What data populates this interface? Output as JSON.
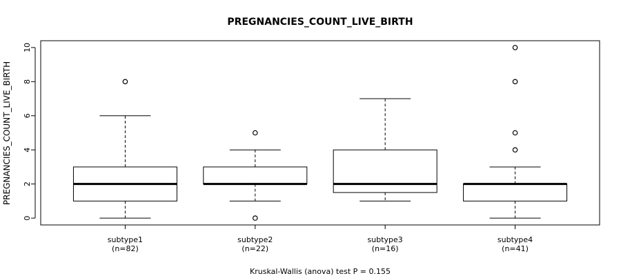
{
  "chart_data": {
    "type": "box",
    "title": "PREGNANCIES_COUNT_LIVE_BIRTH",
    "ylabel": "PREGNANCIES_COUNT_LIVE_BIRTH",
    "xlabel": "",
    "ylim": [
      -0.4,
      10.4
    ],
    "yticks": [
      0,
      2,
      4,
      6,
      8,
      10
    ],
    "footer": "Kruskal-Wallis (anova) test P = 0.155",
    "groups": [
      {
        "name": "subtype1",
        "n_label": "(n=82)",
        "whisker_low": 0,
        "q1": 1,
        "median": 2,
        "q3": 3,
        "whisker_high": 6,
        "outliers": [
          8
        ]
      },
      {
        "name": "subtype2",
        "n_label": "(n=22)",
        "whisker_low": 1,
        "q1": 2,
        "median": 2,
        "q3": 3,
        "whisker_high": 4,
        "outliers": [
          5,
          0
        ]
      },
      {
        "name": "subtype3",
        "n_label": "(n=16)",
        "whisker_low": 1,
        "q1": 1.5,
        "median": 2,
        "q3": 4,
        "whisker_high": 7,
        "outliers": []
      },
      {
        "name": "subtype4",
        "n_label": "(n=41)",
        "whisker_low": 0,
        "q1": 1,
        "median": 2,
        "q3": 2,
        "whisker_high": 3,
        "outliers": [
          4,
          5,
          8,
          10
        ]
      }
    ]
  }
}
